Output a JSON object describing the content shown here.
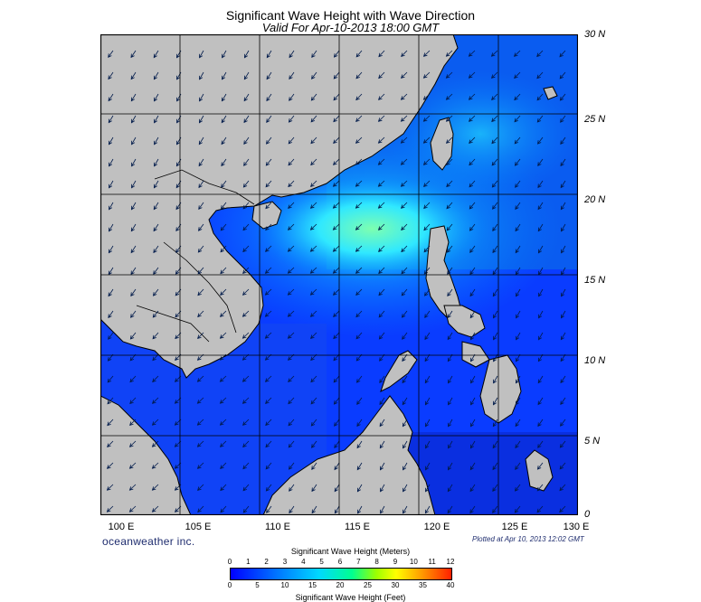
{
  "title": "Significant Wave Height with Wave Direction",
  "subtitle": "Valid For Apr-10-2013 18:00 GMT",
  "lat_labels": [
    "30 N",
    "25 N",
    "20 N",
    "15 N",
    "10 N",
    "5 N",
    "0"
  ],
  "lon_labels": [
    "100 E",
    "105 E",
    "110 E",
    "115 E",
    "120 E",
    "125 E",
    "130 E"
  ],
  "brand": "oceanweather inc.",
  "plotted": "Plotted at Apr 10, 2013 12:02 GMT",
  "colorbar": {
    "title_meters": "Significant Wave Height (Meters)",
    "title_feet": "Significant Wave Height (Feet)",
    "meters_ticks": [
      "0",
      "1",
      "2",
      "3",
      "4",
      "5",
      "6",
      "7",
      "8",
      "9",
      "10",
      "11",
      "12"
    ],
    "feet_ticks": [
      "0",
      "5",
      "10",
      "15",
      "20",
      "25",
      "30",
      "35",
      "40"
    ]
  },
  "colors": {
    "land": "#c0c0c0",
    "sea_low": "#0038ff",
    "sea_mid": "#0090ff",
    "sea_high": "#60ffc0"
  }
}
